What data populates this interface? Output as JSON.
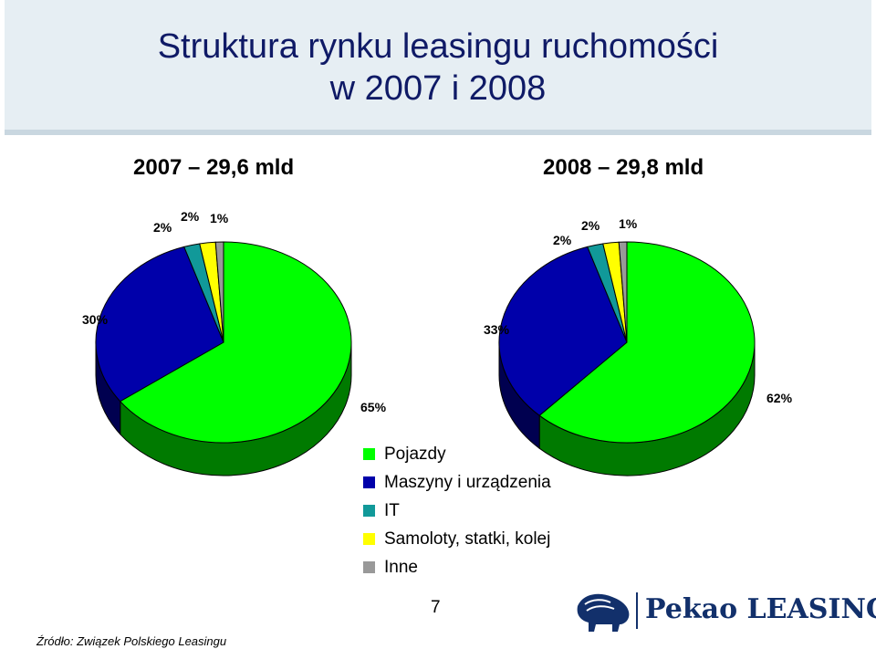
{
  "title": {
    "line1": "Struktura rynku leasingu ruchomości",
    "line2": "w 2007 i 2008"
  },
  "chart_data": [
    {
      "type": "pie",
      "title": "2007 – 29,6 mld",
      "categories": [
        "Pojazdy",
        "Maszyny i urządzenia",
        "IT",
        "Samoloty, statki, kolej",
        "Inne"
      ],
      "values": [
        65,
        30,
        2,
        2,
        1
      ],
      "labels": [
        "65%",
        "30%",
        "2%",
        "2%",
        "1%"
      ]
    },
    {
      "type": "pie",
      "title": "2008 – 29,8 mld",
      "categories": [
        "Pojazdy",
        "Maszyny i urządzenia",
        "IT",
        "Samoloty, statki, kolej",
        "Inne"
      ],
      "values": [
        62,
        33,
        2,
        2,
        1
      ],
      "labels": [
        "62%",
        "33%",
        "2%",
        "2%",
        "1%"
      ]
    }
  ],
  "legend": [
    {
      "label": "Pojazdy",
      "color": "#00ff00",
      "dark": "#007a00"
    },
    {
      "label": "Maszyny i urządzenia",
      "color": "#0000aa",
      "dark": "#000050"
    },
    {
      "label": "IT",
      "color": "#119999",
      "dark": "#0a5555"
    },
    {
      "label": "Samoloty, statki, kolej",
      "color": "#ffff00",
      "dark": "#8a8a00"
    },
    {
      "label": "Inne",
      "color": "#999999",
      "dark": "#555555"
    }
  ],
  "page_number": "7",
  "source": "Źródło: Związek Polskiego Leasingu",
  "logo_text": "Pekao LEASING",
  "colors": {
    "title": "#0f1a66",
    "logo": "#12306b",
    "title_bar": "#e6eef3"
  }
}
